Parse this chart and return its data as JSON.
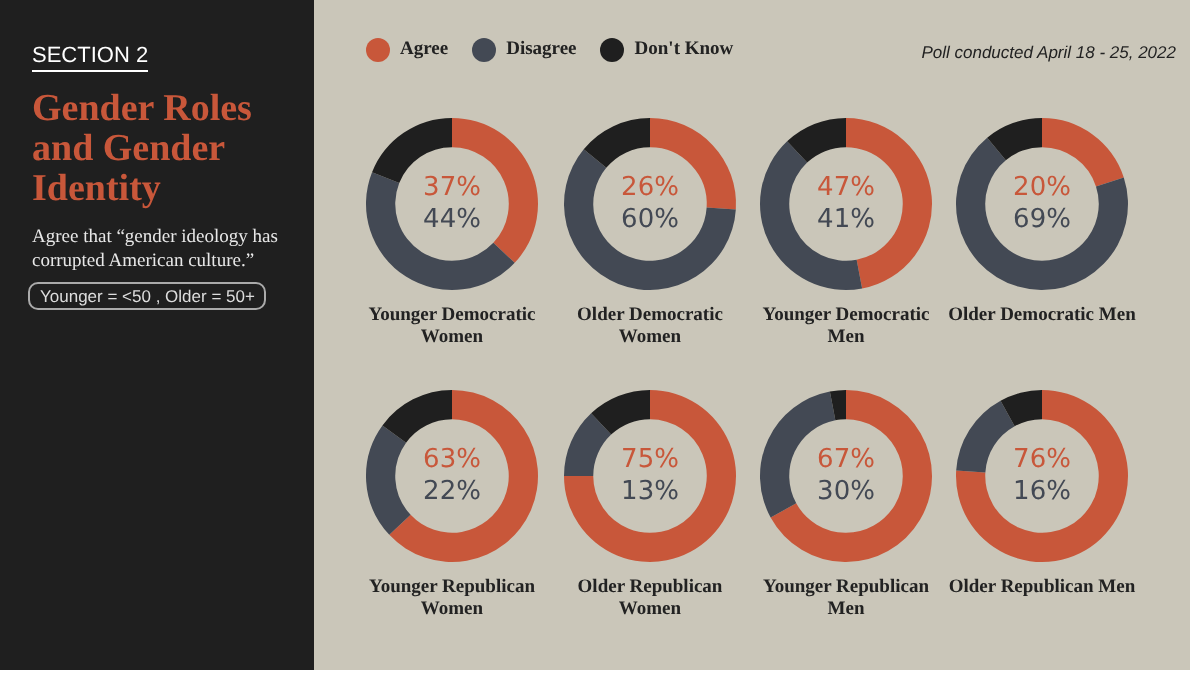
{
  "chart_data": [
    {
      "type": "other",
      "title": "Gender Roles and Gender Identity",
      "subtitle": "Agree that “gender ideology has corrupted American culture.”",
      "annotations": [
        "SECTION 2",
        "Younger = <50 , Older = 50+",
        "Poll conducted April 18 - 25, 2022"
      ]
    },
    {
      "type": "donut",
      "title": "Younger Democratic Women",
      "categories": [
        "Agree",
        "Disagree",
        "Don't Know"
      ],
      "values": [
        37,
        44,
        19
      ],
      "colors": [
        "#c8573a",
        "#434954",
        "#1f1f1f"
      ],
      "annotations": [
        "37%",
        "44%"
      ],
      "legend": "top"
    },
    {
      "type": "donut",
      "title": "Older Democratic Women",
      "values": [
        26,
        60,
        14
      ],
      "colors": [
        "#c8573a",
        "#434954",
        "#1f1f1f"
      ],
      "annotations": [
        "26%",
        "60%"
      ]
    },
    {
      "type": "donut",
      "title": "Younger Democratic Men",
      "values": [
        47,
        41,
        12
      ],
      "colors": [
        "#c8573a",
        "#434954",
        "#1f1f1f"
      ],
      "annotations": [
        "47%",
        "41%"
      ]
    },
    {
      "type": "donut",
      "title": "Older Democratic Men",
      "values": [
        20,
        69,
        11
      ],
      "colors": [
        "#c8573a",
        "#434954",
        "#1f1f1f"
      ],
      "annotations": [
        "20%",
        "69%"
      ]
    },
    {
      "type": "donut",
      "title": "Younger Republican Women",
      "values": [
        63,
        22,
        15
      ],
      "colors": [
        "#c8573a",
        "#434954",
        "#1f1f1f"
      ],
      "annotations": [
        "63%",
        "22%"
      ]
    },
    {
      "type": "donut",
      "title": "Older Republican Women",
      "values": [
        75,
        13,
        12
      ],
      "colors": [
        "#c8573a",
        "#434954",
        "#1f1f1f"
      ],
      "annotations": [
        "75%",
        "13%"
      ]
    },
    {
      "type": "donut",
      "title": "Younger Republican Men",
      "values": [
        67,
        30,
        3
      ],
      "colors": [
        "#c8573a",
        "#434954",
        "#1f1f1f"
      ],
      "annotations": [
        "67%",
        "30%"
      ]
    },
    {
      "type": "donut",
      "title": "Older Republican Men",
      "values": [
        76,
        16,
        8
      ],
      "colors": [
        "#c8573a",
        "#434954",
        "#1f1f1f"
      ],
      "annotations": [
        "76%",
        "16%"
      ]
    }
  ]
}
